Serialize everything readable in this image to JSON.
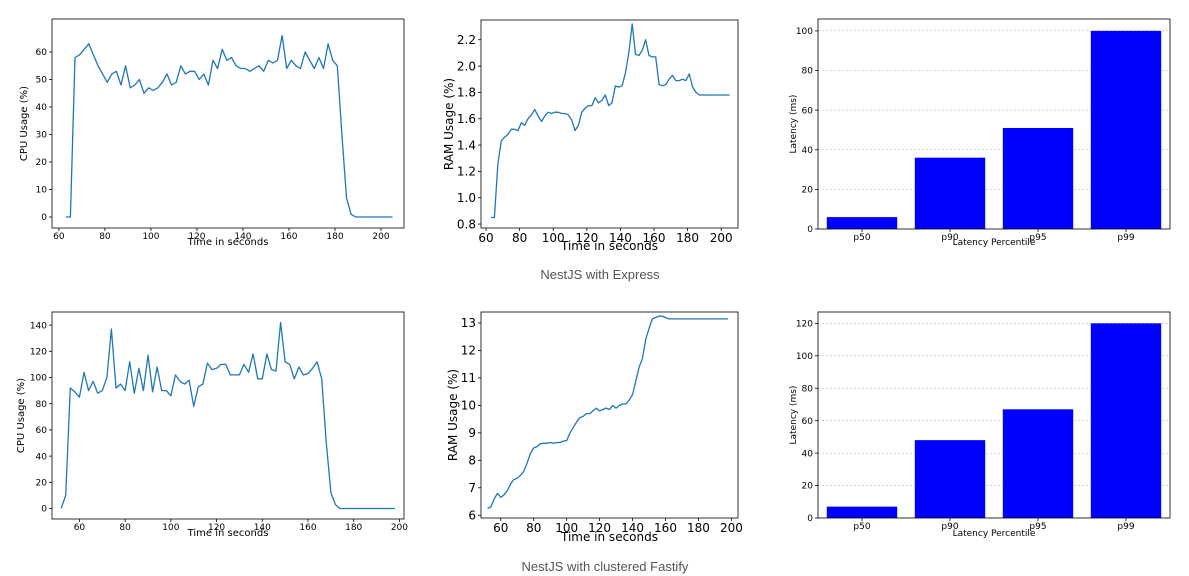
{
  "colors": {
    "line": "#1f77b4",
    "bar": "#0000ff",
    "axis": "#000000",
    "grid": "#b0b0b0"
  },
  "captions": [
    "NestJS with Express",
    "NestJS with clustered Fastify"
  ],
  "chart_data": [
    {
      "type": "line",
      "title": "",
      "xlabel": "Time in seconds",
      "ylabel": "CPU Usage (%)",
      "xlim": [
        57,
        210
      ],
      "ylim": [
        -4,
        72
      ],
      "xticks": [
        60,
        80,
        100,
        120,
        140,
        160,
        180,
        200
      ],
      "yticks": [
        0,
        10,
        20,
        30,
        40,
        50,
        60
      ],
      "x": [
        63,
        65,
        67,
        69,
        71,
        73,
        75,
        77,
        79,
        81,
        83,
        85,
        87,
        89,
        91,
        93,
        95,
        97,
        99,
        101,
        103,
        105,
        107,
        109,
        111,
        113,
        115,
        117,
        119,
        121,
        123,
        125,
        127,
        129,
        131,
        133,
        135,
        137,
        139,
        141,
        143,
        145,
        147,
        149,
        151,
        153,
        155,
        157,
        159,
        161,
        163,
        165,
        167,
        169,
        171,
        173,
        175,
        177,
        179,
        181,
        183,
        185,
        187,
        189,
        191,
        193,
        195,
        197,
        199,
        201,
        203,
        205
      ],
      "y": [
        0,
        0,
        58,
        59,
        61,
        63,
        59,
        55,
        52,
        49,
        52,
        53,
        48,
        55,
        47,
        48,
        50,
        45,
        47,
        46,
        47,
        49,
        52,
        48,
        49,
        55,
        52,
        53,
        53,
        50,
        52,
        48,
        57,
        54,
        61,
        57,
        58,
        55,
        54,
        54,
        53,
        54,
        55,
        53,
        57,
        56,
        57,
        66,
        54,
        57,
        55,
        54,
        60,
        57,
        54,
        58,
        54,
        63,
        57,
        55,
        30,
        7,
        1,
        0,
        0,
        0,
        0,
        0,
        0,
        0,
        0,
        0
      ]
    },
    {
      "type": "line",
      "title": "",
      "xlabel": "Time in seconds",
      "ylabel": "RAM Usage (%)",
      "xlim": [
        57,
        210
      ],
      "ylim": [
        0.77,
        2.35
      ],
      "xticks": [
        60,
        80,
        100,
        120,
        140,
        160,
        180,
        200
      ],
      "yticks": [
        0.8,
        1.0,
        1.2,
        1.4,
        1.6,
        1.8,
        2.0,
        2.2
      ],
      "x": [
        63,
        65,
        67,
        69,
        71,
        73,
        75,
        77,
        79,
        81,
        83,
        85,
        87,
        89,
        91,
        93,
        95,
        97,
        99,
        101,
        103,
        105,
        107,
        109,
        111,
        113,
        115,
        117,
        119,
        121,
        123,
        125,
        127,
        129,
        131,
        133,
        135,
        137,
        139,
        141,
        143,
        145,
        147,
        149,
        151,
        153,
        155,
        157,
        159,
        161,
        163,
        165,
        167,
        169,
        171,
        173,
        175,
        177,
        179,
        181,
        183,
        185,
        187,
        189,
        191,
        193,
        195,
        197,
        199,
        201,
        203,
        205
      ],
      "y": [
        0.85,
        0.85,
        1.25,
        1.43,
        1.46,
        1.48,
        1.52,
        1.52,
        1.51,
        1.57,
        1.55,
        1.6,
        1.63,
        1.67,
        1.62,
        1.58,
        1.62,
        1.65,
        1.64,
        1.65,
        1.65,
        1.64,
        1.64,
        1.63,
        1.59,
        1.51,
        1.55,
        1.65,
        1.68,
        1.7,
        1.7,
        1.76,
        1.72,
        1.74,
        1.78,
        1.7,
        1.72,
        1.85,
        1.84,
        1.85,
        1.95,
        2.1,
        2.32,
        2.09,
        2.08,
        2.12,
        2.2,
        2.08,
        2.07,
        2.07,
        1.86,
        1.85,
        1.86,
        1.9,
        1.93,
        1.89,
        1.89,
        1.9,
        1.89,
        1.94,
        1.84,
        1.8,
        1.78,
        1.78,
        1.78,
        1.78,
        1.78,
        1.78,
        1.78,
        1.78,
        1.78,
        1.78
      ]
    },
    {
      "type": "bar",
      "title": "",
      "xlabel": "Latency Percentile",
      "ylabel": "Latency (ms)",
      "categories": [
        "p50",
        "p90",
        "p95",
        "p99"
      ],
      "values": [
        6,
        36,
        51,
        100
      ],
      "ylim": [
        0,
        106
      ],
      "yticks": [
        0,
        20,
        40,
        60,
        80,
        100
      ],
      "grid": true
    },
    {
      "type": "line",
      "title": "",
      "xlabel": "Time in seconds",
      "ylabel": "CPU Usage (%)",
      "xlim": [
        48,
        202
      ],
      "ylim": [
        -8,
        150
      ],
      "xticks": [
        60,
        80,
        100,
        120,
        140,
        160,
        180,
        200
      ],
      "yticks": [
        0,
        20,
        40,
        60,
        80,
        100,
        120,
        140
      ],
      "x": [
        52,
        54,
        56,
        58,
        60,
        62,
        64,
        66,
        68,
        70,
        72,
        74,
        76,
        78,
        80,
        82,
        84,
        86,
        88,
        90,
        92,
        94,
        96,
        98,
        100,
        102,
        104,
        106,
        108,
        110,
        112,
        114,
        116,
        118,
        120,
        122,
        124,
        126,
        128,
        130,
        132,
        134,
        136,
        138,
        140,
        142,
        144,
        146,
        148,
        150,
        152,
        154,
        156,
        158,
        160,
        162,
        164,
        166,
        168,
        170,
        172,
        174,
        176,
        178,
        180,
        182,
        184,
        186,
        188,
        190,
        192,
        194,
        196,
        198
      ],
      "y": [
        0,
        10,
        92,
        89,
        85,
        104,
        90,
        97,
        88,
        90,
        100,
        137,
        92,
        95,
        90,
        112,
        88,
        107,
        90,
        117,
        89,
        108,
        90,
        90,
        86,
        102,
        97,
        95,
        98,
        78,
        93,
        95,
        111,
        106,
        107,
        110,
        110,
        102,
        102,
        102,
        110,
        104,
        118,
        99,
        99,
        118,
        106,
        105,
        142,
        112,
        110,
        99,
        108,
        102,
        103,
        107,
        112,
        99,
        50,
        12,
        3,
        0,
        0,
        0,
        0,
        0,
        0,
        0,
        0,
        0,
        0,
        0,
        0,
        0
      ]
    },
    {
      "type": "line",
      "title": "",
      "xlabel": "Time in seconds",
      "ylabel": "RAM Usage (%)",
      "xlim": [
        48,
        204
      ],
      "ylim": [
        5.9,
        13.4
      ],
      "xticks": [
        60,
        80,
        100,
        120,
        140,
        160,
        180,
        200
      ],
      "yticks": [
        6,
        7,
        8,
        9,
        10,
        11,
        12,
        13
      ],
      "x": [
        52,
        54,
        56,
        58,
        60,
        62,
        64,
        66,
        68,
        70,
        72,
        74,
        76,
        78,
        80,
        82,
        84,
        86,
        88,
        90,
        92,
        94,
        96,
        98,
        100,
        102,
        104,
        106,
        108,
        110,
        112,
        114,
        116,
        118,
        120,
        122,
        124,
        126,
        128,
        130,
        132,
        134,
        136,
        138,
        140,
        142,
        144,
        146,
        148,
        150,
        152,
        154,
        156,
        158,
        160,
        162,
        164,
        166,
        168,
        170,
        172,
        174,
        176,
        178,
        180,
        182,
        184,
        186,
        188,
        190,
        192,
        194,
        196,
        198
      ],
      "y": [
        6.25,
        6.3,
        6.6,
        6.8,
        6.65,
        6.75,
        6.9,
        7.15,
        7.3,
        7.35,
        7.45,
        7.6,
        7.9,
        8.25,
        8.45,
        8.5,
        8.6,
        8.62,
        8.62,
        8.65,
        8.62,
        8.65,
        8.65,
        8.7,
        8.72,
        9.0,
        9.2,
        9.4,
        9.55,
        9.6,
        9.7,
        9.7,
        9.8,
        9.9,
        9.8,
        9.85,
        9.9,
        9.85,
        10.0,
        9.9,
        10.0,
        10.05,
        10.05,
        10.2,
        10.4,
        10.9,
        11.4,
        11.7,
        12.4,
        12.8,
        13.15,
        13.2,
        13.25,
        13.25,
        13.2,
        13.15,
        13.15,
        13.15,
        13.15,
        13.15,
        13.15,
        13.15,
        13.15,
        13.15,
        13.15,
        13.15,
        13.15,
        13.15,
        13.15,
        13.15,
        13.15,
        13.15,
        13.15,
        13.15
      ]
    },
    {
      "type": "bar",
      "title": "",
      "xlabel": "Latency Percentile",
      "ylabel": "Latency (ms)",
      "categories": [
        "p50",
        "p90",
        "p95",
        "p99"
      ],
      "values": [
        7,
        48,
        67,
        120
      ],
      "ylim": [
        0,
        127
      ],
      "yticks": [
        0,
        20,
        40,
        60,
        80,
        100,
        120
      ],
      "grid": true
    }
  ]
}
